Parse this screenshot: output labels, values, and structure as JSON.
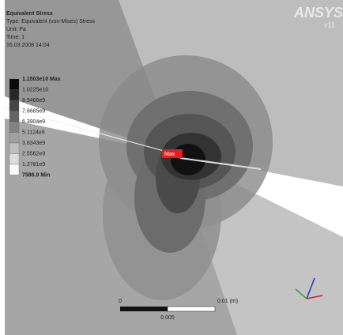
{
  "header": {
    "title": "Equivalent Stress",
    "type": "Type: Equivalent (von-Mises) Stress",
    "unit": "Unit: Pa",
    "time": "Time: 1",
    "date": "16.03.2008 14:04"
  },
  "logo": {
    "brand": "ANSYS",
    "version": "v11"
  },
  "legend": {
    "max_label": "1.1503e10 Max",
    "levels": [
      "1.0225e10",
      "8.9466e9",
      "7.6685e9",
      "6.3904e9",
      "5.1124e9",
      "3.8343e9",
      "2.5562e9",
      "1.2781e9"
    ],
    "min_label": "7586.9 Min"
  },
  "markers": {
    "max": "Max"
  },
  "scale_bar": {
    "start": "0",
    "end": "0.01 (m)",
    "mid": "0.005"
  }
}
